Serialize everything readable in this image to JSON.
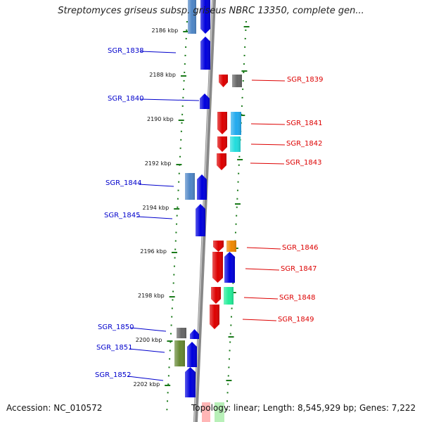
{
  "title": "Streptomyces griseus subsp. griseus NBRC 13350, complete gen...",
  "footer": {
    "accession": "Accession: NC_010572",
    "summary": "Topology: linear; Length: 8,545,929 bp; Genes: 7,222"
  },
  "colors": {
    "strand_plus": "#dd0000",
    "strand_minus": "#0000cc",
    "tick": "#1a7a1a",
    "backbone": "#888888"
  },
  "ruler": [
    {
      "label": "2186 kbp"
    },
    {
      "label": "2188 kbp"
    },
    {
      "label": "2190 kbp"
    },
    {
      "label": "2192 kbp"
    },
    {
      "label": "2194 kbp"
    },
    {
      "label": "2196 kbp"
    },
    {
      "label": "2198 kbp"
    },
    {
      "label": "2200 kbp"
    },
    {
      "label": "2202 kbp"
    }
  ],
  "genes": [
    {
      "label": "SGR_1838"
    },
    {
      "label": "SGR_1839"
    },
    {
      "label": "SGR_1840"
    },
    {
      "label": "SGR_1841"
    },
    {
      "label": "SGR_1842"
    },
    {
      "label": "SGR_1843"
    },
    {
      "label": "SGR_1844"
    },
    {
      "label": "SGR_1845"
    },
    {
      "label": "SGR_1846"
    },
    {
      "label": "SGR_1847"
    },
    {
      "label": "SGR_1848"
    },
    {
      "label": "SGR_1849"
    },
    {
      "label": "SGR_1850"
    },
    {
      "label": "SGR_1851"
    },
    {
      "label": "SGR_1852"
    }
  ]
}
